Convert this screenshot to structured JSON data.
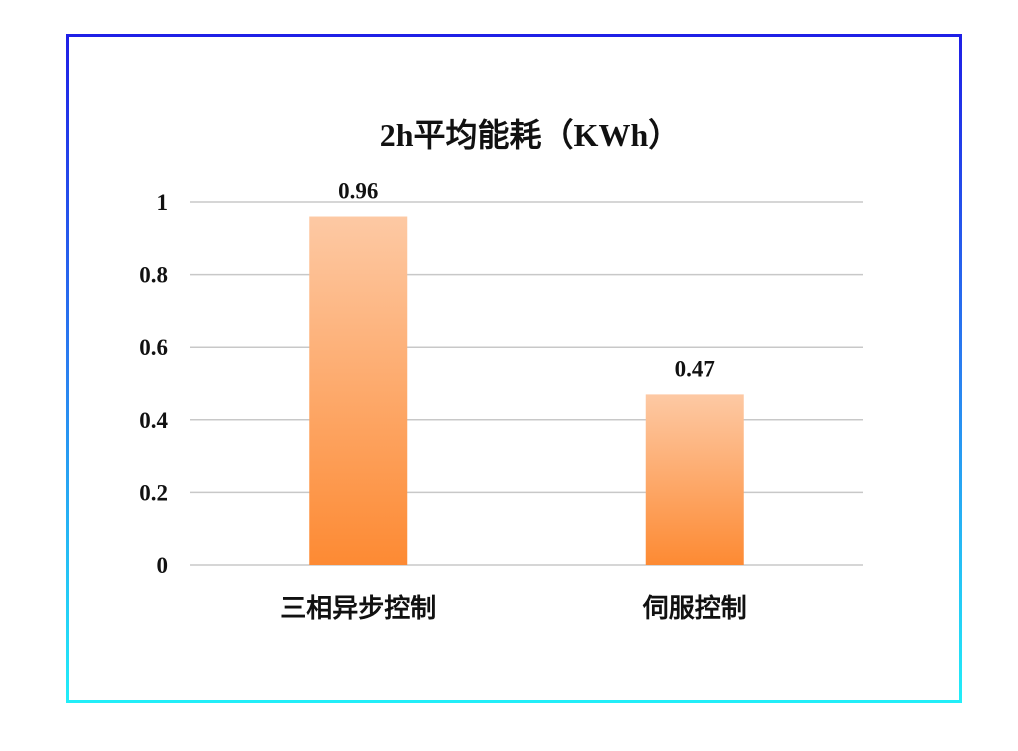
{
  "chart_data": {
    "type": "bar",
    "title": "2h平均能耗（KWh）",
    "categories": [
      "三相异步控制",
      "伺服控制"
    ],
    "values": [
      0.96,
      0.47
    ],
    "data_labels": [
      "0.96",
      "0.47"
    ],
    "ylim": [
      0,
      1
    ],
    "yticks": [
      "0",
      "0.2",
      "0.4",
      "0.6",
      "0.8",
      "1"
    ],
    "grid": true,
    "legend": "none",
    "colors": {
      "bar_top": "#fdc9a4",
      "bar_bottom": "#fd8a33",
      "grid": "#c8c8c8",
      "frame_top": "#1f1fe6",
      "frame_bottom": "#22eef8"
    }
  }
}
